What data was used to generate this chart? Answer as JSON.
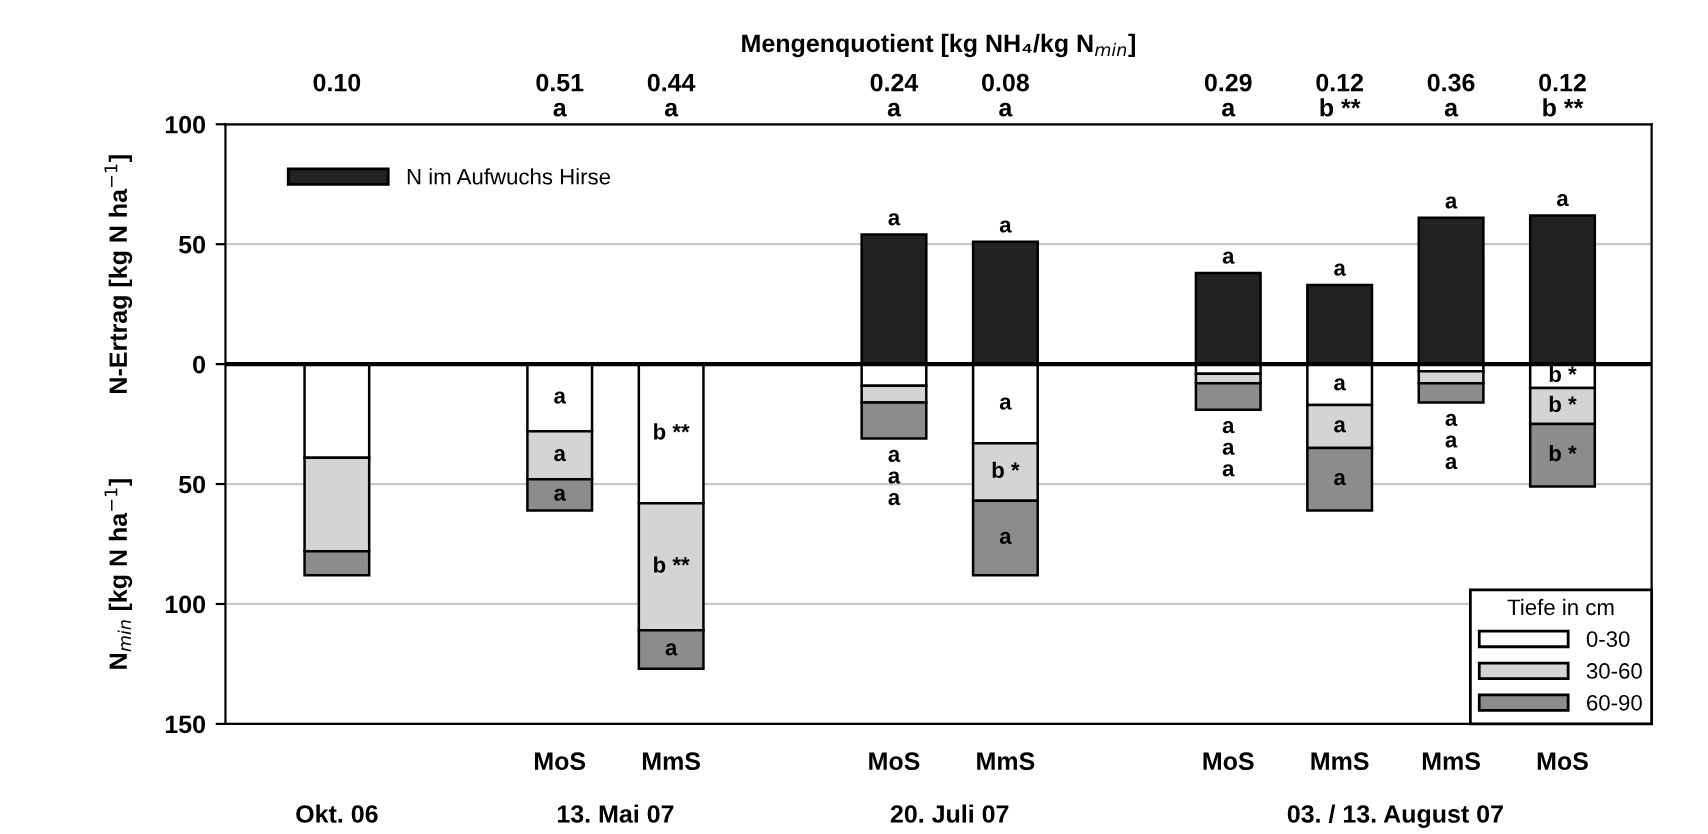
{
  "chart_data": {
    "type": "bar",
    "stacked": true,
    "categories": [
      null,
      null,
      "MoS",
      "MmS",
      null,
      "MoS",
      "MmS",
      null,
      "MoS",
      "MmS",
      "MmS",
      "MoS"
    ],
    "series": [
      {
        "name": "N im Aufwuchs Hirse",
        "color": "#222222",
        "values": [
          null,
          null,
          null,
          null,
          null,
          54,
          51,
          null,
          38,
          33,
          61,
          62
        ],
        "value_labels": [
          null,
          null,
          null,
          null,
          null,
          "a",
          "a",
          null,
          "a",
          "a",
          "a",
          "a"
        ]
      },
      {
        "name": "0-30",
        "color": "#ffffff",
        "values": [
          -39,
          null,
          -28,
          -58,
          null,
          -9,
          -33,
          null,
          -4,
          -17,
          -3,
          -10
        ],
        "value_labels": [
          null,
          null,
          "a",
          "b **",
          null,
          "a",
          "a",
          null,
          "a",
          "a",
          "a",
          "b *"
        ]
      },
      {
        "name": "30-60",
        "color": "#d4d4d4",
        "values": [
          -39,
          null,
          -20,
          -53,
          null,
          -7,
          -24,
          null,
          -4,
          -18,
          -5,
          -15
        ],
        "value_labels": [
          null,
          null,
          "a",
          "b **",
          null,
          "a",
          "b *",
          null,
          "a",
          "a",
          "a",
          "b *"
        ]
      },
      {
        "name": "60-90",
        "color": "#8c8c8c",
        "values": [
          -10,
          null,
          -13,
          -16,
          null,
          -15,
          -31,
          null,
          -11,
          -26,
          -8,
          -26
        ],
        "value_labels": [
          null,
          null,
          "a",
          "a",
          null,
          "a",
          "a",
          null,
          "a",
          "a",
          "a",
          "b *"
        ]
      }
    ],
    "ylabel": "N-Ertrag [kg N ha$^{−1}$]",
    "y2label": "N$_{min}$ [kg N ha$^{−1}$]",
    "ylim": [
      -150,
      100
    ],
    "yticks": [
      {
        "value": -150,
        "label": "150"
      },
      {
        "value": -100,
        "label": "100"
      },
      {
        "value": -50,
        "label": "50"
      },
      0,
      50,
      100
    ],
    "title": "Mengenquotient [kg NH₄/kg N$_{min}$]",
    "annotations": [
      "0.10\n",
      "0.51\na",
      "0.44\na",
      "0.24\na",
      "0.08\na",
      "0.29\na",
      "0.12\nb **",
      "0.36\na",
      "0.12\nb **",
      "Okt. 06",
      "13. Mai 07",
      "20. Juli 07",
      "03. / 13. August 07"
    ],
    "ref_lines": [
      {
        "axis": "y",
        "value": 0,
        "color": "#000000"
      }
    ],
    "legend": "bottom right",
    "legend_title": "Tiefe in cm",
    "grid": "y"
  }
}
